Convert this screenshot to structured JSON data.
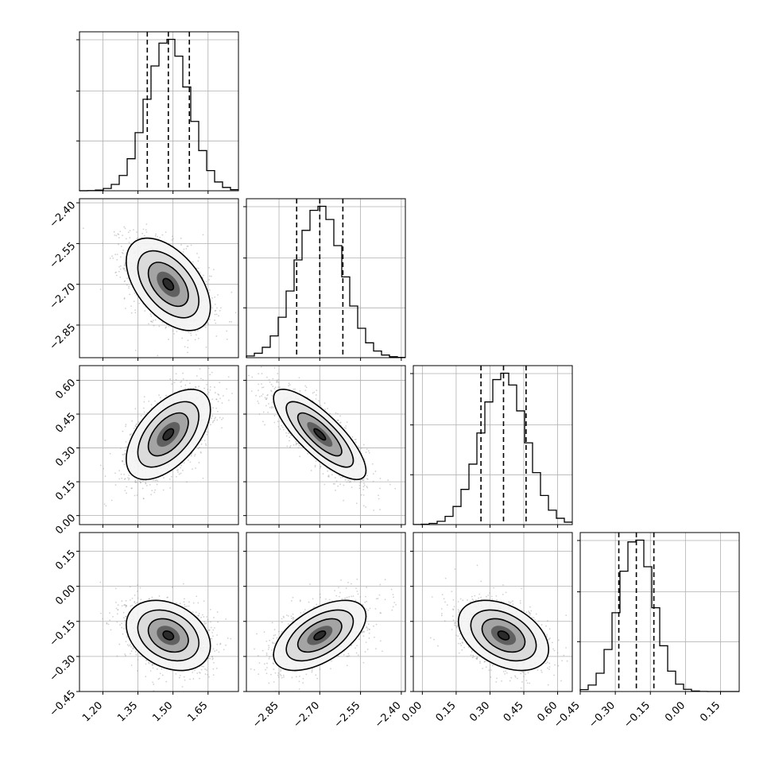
{
  "chart_data": {
    "type": "corner",
    "parameters": [
      {
        "index": 0,
        "range": [
          1.1,
          1.78
        ],
        "ticks": [
          1.2,
          1.35,
          1.5,
          1.65
        ],
        "tick_labels": [
          "1.20",
          "1.35",
          "1.50",
          "1.65"
        ],
        "mean": 1.48,
        "sigma": 0.09,
        "quantiles": [
          1.39,
          1.48,
          1.57
        ]
      },
      {
        "index": 1,
        "range": [
          -2.97,
          -2.385
        ],
        "ticks": [
          -2.85,
          -2.7,
          -2.55,
          -2.4
        ],
        "tick_labels": [
          "−2.85",
          "−2.70",
          "−2.55",
          "−2.40"
        ],
        "mean": -2.7,
        "sigma": 0.085,
        "quantiles": [
          -2.785,
          -2.7,
          -2.615
        ]
      },
      {
        "index": 2,
        "range": [
          -0.04,
          0.665
        ],
        "ticks": [
          0.0,
          0.15,
          0.3,
          0.45,
          0.6
        ],
        "tick_labels": [
          "0.00",
          "0.15",
          "0.30",
          "0.45",
          "0.60"
        ],
        "mean": 0.36,
        "sigma": 0.1,
        "quantiles": [
          0.26,
          0.36,
          0.46
        ]
      },
      {
        "index": 3,
        "range": [
          -0.45,
          0.23
        ],
        "ticks": [
          -0.45,
          -0.3,
          -0.15,
          0.0,
          0.15
        ],
        "tick_labels": [
          "−0.45",
          "−0.30",
          "−0.15",
          "0.00",
          "0.15"
        ],
        "mean": -0.21,
        "sigma": 0.075,
        "quantiles": [
          -0.285,
          -0.21,
          -0.135
        ]
      }
    ],
    "correlations": [
      {
        "pair": [
          0,
          1
        ],
        "rho": -0.5
      },
      {
        "pair": [
          0,
          2
        ],
        "rho": 0.55
      },
      {
        "pair": [
          1,
          2
        ],
        "rho": -0.8
      },
      {
        "pair": [
          0,
          3
        ],
        "rho": -0.3
      },
      {
        "pair": [
          1,
          3
        ],
        "rho": 0.55
      },
      {
        "pair": [
          2,
          3
        ],
        "rho": -0.4
      }
    ],
    "histogram_bins": 20,
    "grid": true,
    "legend": "none"
  }
}
